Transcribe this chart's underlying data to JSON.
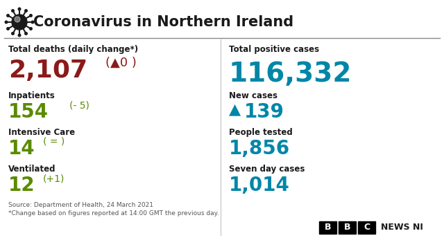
{
  "title": "Coronavirus in Northern Ireland",
  "bg_color": "#ffffff",
  "title_color": "#1a1a1a",
  "header_line_color": "#888888",
  "divider_color": "#cccccc",
  "red_color": "#8b1a1a",
  "green_color": "#5a8a00",
  "teal_color": "#0086a8",
  "black_color": "#1a1a1a",
  "left_col": {
    "label1": "Total deaths (daily change*)",
    "value1": "2,107",
    "change1": "(▲0 )",
    "label2": "Inpatients",
    "value2": "154",
    "change2": "(- 5)",
    "label3": "Intensive Care",
    "value3": "14",
    "change3": "( = )",
    "label4": "Ventilated",
    "value4": "12",
    "change4": "(+1)"
  },
  "right_col": {
    "label1": "Total positive cases",
    "value1": "116,332",
    "label2": "New cases",
    "arrow2": "▲",
    "value2": "139",
    "label3": "People tested",
    "value3": "1,856",
    "label4": "Seven day cases",
    "value4": "1,014"
  },
  "footer1": "Source: Department of Health, 24 March 2021",
  "footer2": "*Change based on figures reported at 14:00 GMT the previous day.",
  "bbc_letters": [
    "B",
    "B",
    "C"
  ],
  "bbc_suffix": "NEWS NI"
}
